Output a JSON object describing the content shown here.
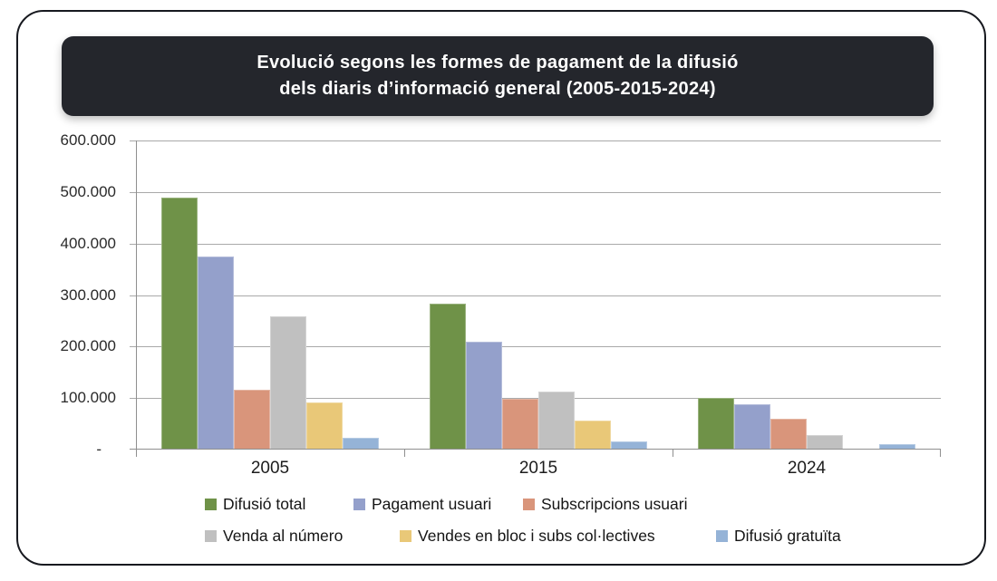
{
  "title": {
    "line1": "Evolució segons les formes de pagament de la difusió",
    "line2": "dels diaris d’informació general (2005-2015-2024)"
  },
  "chart_data": {
    "type": "bar",
    "title": "Evolució segons les formes de pagament de la difusió dels diaris d’informació general (2005-2015-2024)",
    "categories": [
      "2005",
      "2015",
      "2024"
    ],
    "series": [
      {
        "name": "Difusió total",
        "color": "#6F9248",
        "values": [
          490000,
          283000,
          101000
        ]
      },
      {
        "name": "Pagament usuari",
        "color": "#94A0CB",
        "values": [
          375000,
          210000,
          88000
        ]
      },
      {
        "name": "Subscripcions usuari",
        "color": "#D9957B",
        "values": [
          117000,
          98000,
          60000
        ]
      },
      {
        "name": "Venda al número",
        "color": "#C0C0C0",
        "values": [
          258000,
          112000,
          28000
        ]
      },
      {
        "name": "Vendes en bloc i subs col·lectives",
        "color": "#E9C878",
        "values": [
          92000,
          57000,
          2000
        ]
      },
      {
        "name": "Difusió gratuïta",
        "color": "#95B3D7",
        "values": [
          23000,
          16000,
          10000
        ]
      }
    ],
    "ylim": [
      0,
      600000
    ],
    "ytick_labels": [
      "600.000",
      "500.000",
      "400.000",
      "300.000",
      "200.000",
      "100.000",
      "-"
    ],
    "grid": true,
    "legend_position": "bottom",
    "legend_rows": [
      [
        0,
        1,
        2
      ],
      [
        3,
        4,
        5
      ]
    ]
  }
}
